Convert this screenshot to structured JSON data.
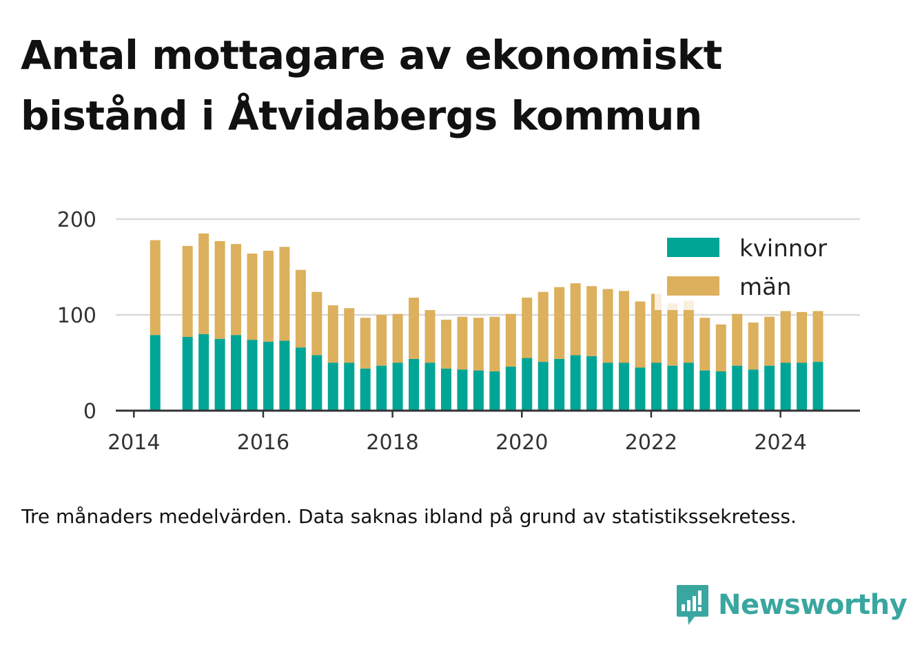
{
  "title": "Antal mottagare av ekonomiskt bistånd i Åtvidabergs kommun",
  "note": "Tre månaders medelvärden. Data saknas ibland på grund av statistikssekretess.",
  "brand": {
    "name": "Newsworthy",
    "icon": "newsworthy-logo-icon",
    "color": "#3aa6a0"
  },
  "chart_data": {
    "type": "bar",
    "stacked": true,
    "x_unit": "year",
    "x": [
      2014.33,
      2014.83,
      2015.08,
      2015.33,
      2015.58,
      2015.83,
      2016.08,
      2016.33,
      2016.58,
      2016.83,
      2017.08,
      2017.33,
      2017.58,
      2017.83,
      2018.08,
      2018.33,
      2018.58,
      2018.83,
      2019.08,
      2019.33,
      2019.58,
      2019.83,
      2020.08,
      2020.33,
      2020.58,
      2020.83,
      2021.08,
      2021.33,
      2021.58,
      2021.83,
      2022.08,
      2022.33,
      2022.58,
      2022.83,
      2023.08,
      2023.33,
      2023.58,
      2023.83,
      2024.08,
      2024.33,
      2024.58
    ],
    "series": [
      {
        "name": "kvinnor",
        "color": "#00a596",
        "values": [
          79,
          77,
          80,
          75,
          79,
          74,
          72,
          73,
          66,
          58,
          50,
          50,
          44,
          47,
          50,
          54,
          50,
          44,
          43,
          42,
          41,
          46,
          55,
          51,
          54,
          58,
          57,
          50,
          50,
          45,
          50,
          47,
          50,
          42,
          41,
          47,
          43,
          47,
          50,
          50,
          51
        ]
      },
      {
        "name": "män",
        "color": "#dcb05c",
        "values": [
          99,
          95,
          105,
          102,
          95,
          90,
          95,
          98,
          81,
          66,
          60,
          57,
          53,
          53,
          51,
          64,
          55,
          51,
          55,
          55,
          57,
          55,
          63,
          73,
          75,
          75,
          73,
          77,
          75,
          69,
          72,
          65,
          65,
          55,
          49,
          54,
          49,
          51,
          54,
          53,
          53
        ]
      }
    ],
    "legend": {
      "position": "top-right",
      "entries": [
        "kvinnor",
        "män"
      ]
    },
    "xlim": [
      2013.72,
      2025.23
    ],
    "ylim": [
      0,
      200
    ],
    "yticks": [
      0,
      100,
      200
    ],
    "xticks": [
      2014,
      2016,
      2018,
      2020,
      2022,
      2024
    ],
    "xtick_labels": [
      "2014",
      "2016",
      "2018",
      "2020",
      "2022",
      "2024"
    ],
    "grid": "horizontal",
    "xlabel": "",
    "ylabel": ""
  }
}
